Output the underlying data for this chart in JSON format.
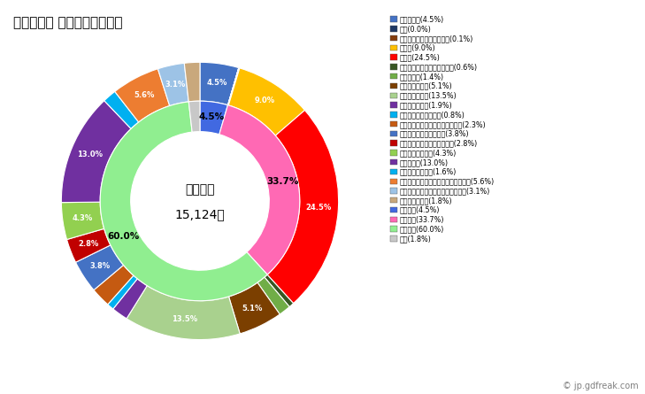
{
  "title": "２０２０年 小矢部市の就業者",
  "center_text_line1": "就業者数",
  "center_text_line2": "15,124人",
  "outer_labels": [
    "農業，林業(4.5%)",
    "漁業(0.0%)",
    "鉱業，採石業，砂利採取業(0.1%)",
    "建設業(9.0%)",
    "製造業(24.5%)",
    "電気・ガス・熱供給・水道業(0.6%)",
    "情報通信業(1.4%)",
    "運輸業，郵便業(5.1%)",
    "卸売業，小売業(13.5%)",
    "金融業，保険業(1.9%)",
    "不動産業，物品賃貸業(0.8%)",
    "学術研究，専門・技術サービス業(2.3%)",
    "宿泊業，飲食サービス業(3.8%)",
    "生活関連サービス業，娯楽業(2.8%)",
    "教育，学習支援業(4.3%)",
    "医療，福祉(13.0%)",
    "複合サービス事業(1.6%)",
    "サービス業（他に分類されないもの）(5.6%)",
    "公務（他に分類されるものを除く）(3.1%)",
    "分類不能の産業(1.8%)"
  ],
  "outer_values": [
    4.5,
    0.01,
    0.1,
    9.0,
    24.5,
    0.6,
    1.4,
    5.1,
    13.5,
    1.9,
    0.8,
    2.3,
    3.8,
    2.8,
    4.3,
    13.0,
    1.6,
    5.6,
    3.1,
    1.8
  ],
  "outer_colors": [
    "#4472c4",
    "#1f3864",
    "#843c0c",
    "#ffc000",
    "#ff0000",
    "#375623",
    "#70ad47",
    "#7b3f00",
    "#a9d18e",
    "#7030a0",
    "#00b0f0",
    "#c55a11",
    "#4472c4",
    "#c00000",
    "#92d050",
    "#7030a0",
    "#00b0f0",
    "#ed7d31",
    "#9dc3e6",
    "#c9a87c"
  ],
  "inner_labels": [
    "一次産業(4.5%)",
    "二次産業(33.7%)",
    "三次産業(60.0%)",
    "不明(1.8%)"
  ],
  "inner_values": [
    4.5,
    33.7,
    60.0,
    1.8
  ],
  "inner_colors": [
    "#4169e1",
    "#ff69b4",
    "#90ee90",
    "#c8c8c8"
  ],
  "outer_ring_labels": [
    {
      "val": 4.5,
      "text": "4.5%"
    },
    {
      "val": 0.01,
      "text": ""
    },
    {
      "val": 0.1,
      "text": ""
    },
    {
      "val": 9.0,
      "text": "9.0%"
    },
    {
      "val": 24.5,
      "text": "24.5%"
    },
    {
      "val": 0.6,
      "text": ""
    },
    {
      "val": 1.4,
      "text": ""
    },
    {
      "val": 5.1,
      "text": "5.1%"
    },
    {
      "val": 13.5,
      "text": "13.5%"
    },
    {
      "val": 1.9,
      "text": ""
    },
    {
      "val": 0.8,
      "text": ""
    },
    {
      "val": 2.3,
      "text": ""
    },
    {
      "val": 3.8,
      "text": "3.8%"
    },
    {
      "val": 2.8,
      "text": "2.8%"
    },
    {
      "val": 4.3,
      "text": "4.3%"
    },
    {
      "val": 13.0,
      "text": "13.0%"
    },
    {
      "val": 1.6,
      "text": ""
    },
    {
      "val": 5.6,
      "text": "5.6%"
    },
    {
      "val": 3.1,
      "text": "3.1%"
    },
    {
      "val": 1.8,
      "text": ""
    }
  ],
  "inner_ring_labels": [
    {
      "val": 4.5,
      "text": "4.5%"
    },
    {
      "val": 33.7,
      "text": "33.7%"
    },
    {
      "val": 60.0,
      "text": "60.0%"
    },
    {
      "val": 1.8,
      "text": "1.8%"
    }
  ],
  "watermark": "© jp.gdfreak.com",
  "bg_color": "#f0f0f0"
}
